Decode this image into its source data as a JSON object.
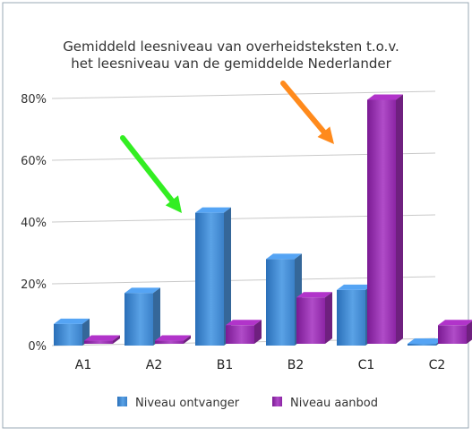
{
  "chart_data": {
    "type": "bar",
    "title": "Gemiddeld leesniveau van overheidsteksten t.o.v. het leesniveau van de gemiddelde Nederlander",
    "title_lines": [
      "Gemiddeld leesniveau van overheidsteksten t.o.v.",
      "het leesniveau van de gemiddelde Nederlander"
    ],
    "categories": [
      "A1",
      "A2",
      "B1",
      "B2",
      "C1",
      "C2"
    ],
    "series": [
      {
        "name": "Niveau ontvanger",
        "values": [
          7,
          17,
          43,
          28,
          18,
          0
        ],
        "color": "#4a8fd4"
      },
      {
        "name": "Niveau aanbod",
        "values": [
          1,
          1,
          6,
          15,
          79,
          6
        ],
        "color": "#9a2db0"
      }
    ],
    "y_ticks": [
      "0%",
      "20%",
      "40%",
      "60%",
      "80%"
    ],
    "ylim": [
      0,
      80
    ],
    "grid": true,
    "legend_position": "bottom",
    "annotations": [
      {
        "type": "arrow",
        "color": "#33ee22",
        "points_to": "B1 Niveau ontvanger"
      },
      {
        "type": "arrow",
        "color": "#ff8a1c",
        "points_to": "C1 Niveau aanbod"
      }
    ]
  }
}
